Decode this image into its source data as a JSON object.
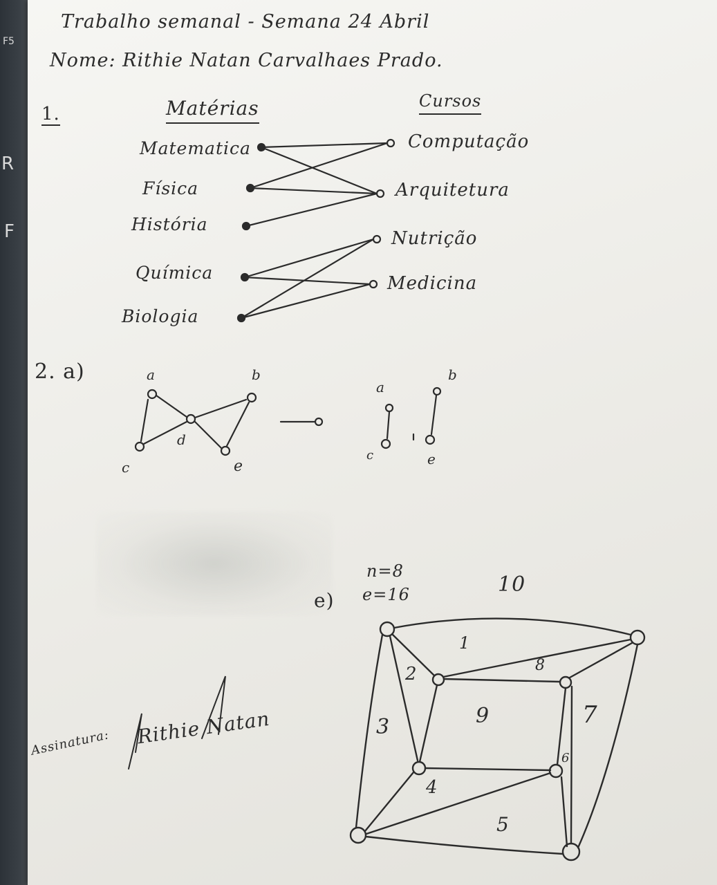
{
  "edge_labels": {
    "f5": "F5",
    "r": "R",
    "f": "F"
  },
  "header": {
    "title": "Trabalho semanal - Semana 24 Abril",
    "name": "Nome: Rithie Natan Carvalhaes Prado."
  },
  "q1": {
    "number": "1.",
    "left_title": "Matérias",
    "right_title": "Cursos",
    "subjects": [
      "Matematica",
      "Física",
      "História",
      "Química",
      "Biologia"
    ],
    "courses": [
      "Computação",
      "Arquitetura",
      "Nutrição",
      "Medicina"
    ]
  },
  "q2a": {
    "label": "2. a)",
    "vertices": {
      "a": "a",
      "b": "b",
      "c": "c",
      "d": "d",
      "e": "e"
    },
    "result_vertices": {
      "a": "a",
      "b": "b",
      "c": "c",
      "e": "e"
    }
  },
  "q2e": {
    "label": "e)",
    "n": "n=8",
    "e": "e=16",
    "region_labels": [
      "1",
      "2",
      "3",
      "4",
      "5",
      "6",
      "7",
      "8",
      "9",
      "10"
    ]
  },
  "signature": {
    "label": "Assinatura:",
    "text": "Rithie Natan"
  }
}
